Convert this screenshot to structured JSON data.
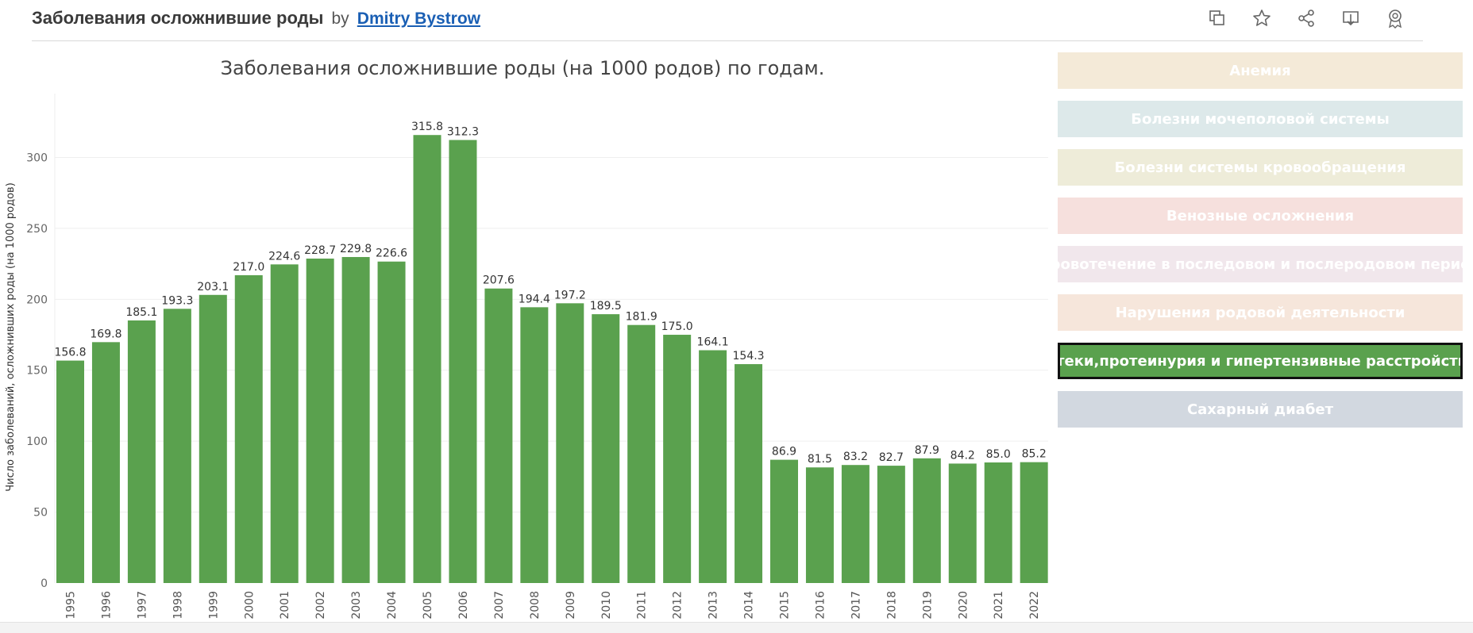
{
  "header": {
    "title": "Заболевания осложнившие роды",
    "by": "by",
    "author": "Dmitry Bystrow"
  },
  "header_icons": [
    "copy-icon",
    "star-icon",
    "share-icon",
    "download-icon",
    "badge-icon"
  ],
  "chart_data": {
    "type": "bar",
    "title": "Заболевания осложнившие роды (на 1000 родов) по годам.",
    "ylabel": "Число заболеваний, осложнивших роды (на 1000 родов)",
    "xlabel": "",
    "categories": [
      "1995",
      "1996",
      "1997",
      "1998",
      "1999",
      "2000",
      "2001",
      "2002",
      "2003",
      "2004",
      "2005",
      "2006",
      "2007",
      "2008",
      "2009",
      "2010",
      "2011",
      "2012",
      "2013",
      "2014",
      "2015",
      "2016",
      "2017",
      "2018",
      "2019",
      "2020",
      "2021",
      "2022"
    ],
    "values": [
      156.8,
      169.8,
      185.1,
      193.3,
      203.1,
      217.0,
      224.6,
      228.7,
      229.8,
      226.6,
      315.8,
      312.3,
      207.6,
      194.4,
      197.2,
      189.5,
      181.9,
      175.0,
      164.1,
      154.3,
      86.9,
      81.5,
      83.2,
      82.7,
      87.9,
      84.2,
      85.0,
      85.2
    ],
    "labels": [
      "156.8",
      "169.8",
      "185.1",
      "193.3",
      "203.1",
      "217.0",
      "224.6",
      "228.7",
      "229.8",
      "226.6",
      "315.8",
      "312.3",
      "207.6",
      "194.4",
      "197.2",
      "189.5",
      "181.9",
      "175.0",
      "164.1",
      "154.3",
      "86.9",
      "81.5",
      "83.2",
      "82.7",
      "87.9",
      "84.2",
      "85.0",
      "85.2"
    ],
    "yticks": [
      "0",
      "50",
      "100",
      "150",
      "200",
      "250",
      "300"
    ],
    "ylim": [
      0,
      345
    ],
    "color": "#5aa14e",
    "grid": true
  },
  "legend": {
    "items": [
      {
        "label": "Анемия",
        "color": "#f4ead8",
        "active": false
      },
      {
        "label": "Болезни мочеполовой системы",
        "color": "#dde9ea",
        "active": false
      },
      {
        "label": "Болезни системы кровообращения",
        "color": "#eeecd9",
        "active": false
      },
      {
        "label": "Венозные осложнения",
        "color": "#f6e0dd",
        "active": false
      },
      {
        "label": "Кровотечение в последовом и послеродовом период",
        "color": "#f1e7ec",
        "active": false
      },
      {
        "label": "Нарушения родовой деятельности",
        "color": "#f6e6db",
        "active": false
      },
      {
        "label": "Отеки,протеинурия и гипертензивные расстройства",
        "color": "#5aa14e",
        "active": true
      },
      {
        "label": "Сахарный диабет",
        "color": "#d2d8e0",
        "active": false
      }
    ]
  }
}
